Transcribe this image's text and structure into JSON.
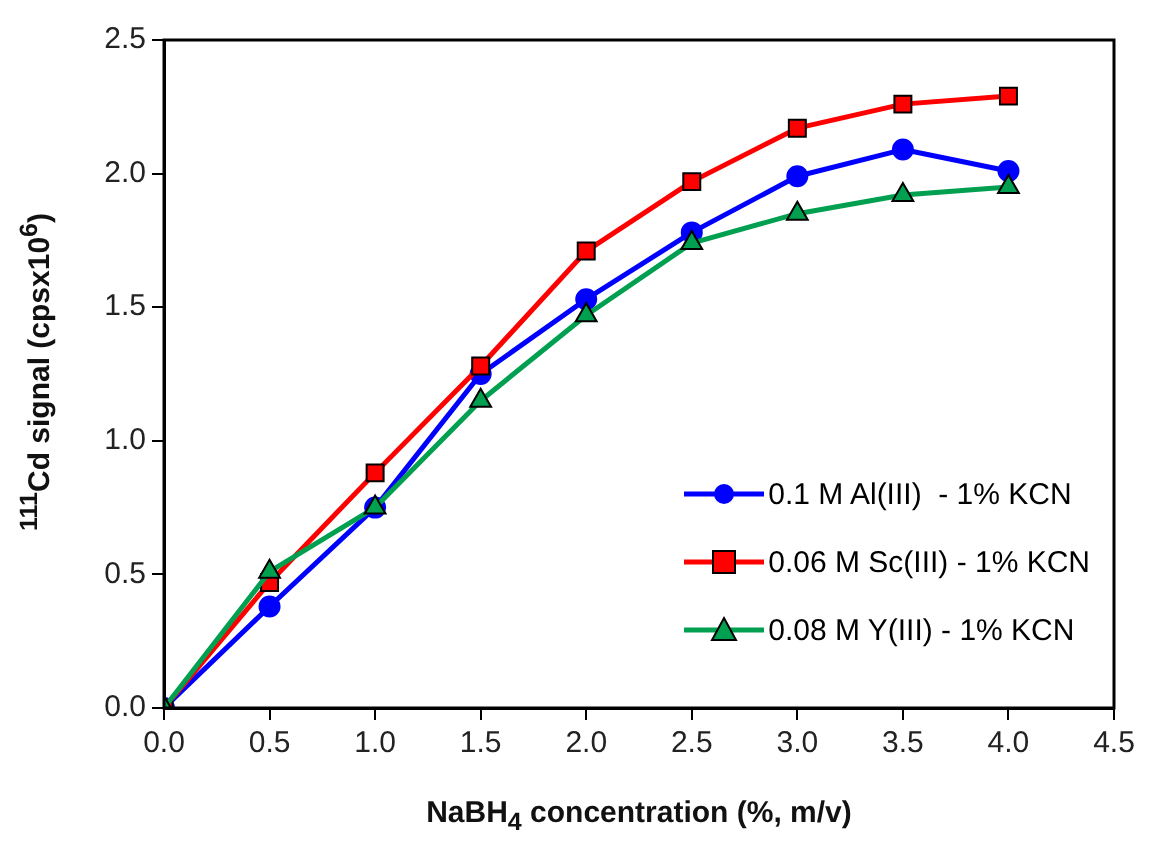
{
  "chart_data": {
    "type": "line",
    "xlabel": "NaBH$_{4}$ concentration (%, m/v)",
    "ylabel": "$^{111}$Cd signal (cpsx10$^{6}$)",
    "x": [
      0,
      0.5,
      1.0,
      1.5,
      2.0,
      2.5,
      3.0,
      3.5,
      4.0
    ],
    "series": [
      {
        "name": "0.1 M Al(III)  - 1% KCN",
        "color": "#0000ff",
        "marker": "circle",
        "values": [
          0,
          0.38,
          0.75,
          1.25,
          1.53,
          1.78,
          1.99,
          2.09,
          2.01
        ]
      },
      {
        "name": "0.06 M Sc(III) - 1% KCN",
        "color": "#ff0000",
        "marker": "square",
        "values": [
          0,
          0.47,
          0.88,
          1.28,
          1.71,
          1.97,
          2.17,
          2.26,
          2.29
        ]
      },
      {
        "name": "0.08 M Y(III) - 1% KCN",
        "color": "#00a050",
        "marker": "triangle",
        "values": [
          0,
          0.51,
          0.75,
          1.15,
          1.47,
          1.74,
          1.85,
          1.92,
          1.95
        ]
      }
    ],
    "xlim": [
      0,
      4.5
    ],
    "xticks": [
      {
        "value": 0,
        "label": "0.0"
      },
      0.5,
      {
        "value": 1,
        "label": "1.0"
      },
      1.5,
      {
        "value": 2,
        "label": "2.0"
      },
      2.5,
      {
        "value": 3,
        "label": "3.0"
      },
      3.5,
      {
        "value": 4,
        "label": "4.0"
      },
      4.5
    ],
    "ylim": [
      0,
      2.5
    ],
    "yticks": [
      {
        "value": 0,
        "label": "0.0"
      },
      0.5,
      {
        "value": 1,
        "label": "1.0"
      },
      1.5,
      {
        "value": 2,
        "label": "2.0"
      },
      2.5
    ],
    "legend": "right",
    "line_style": "solid"
  }
}
